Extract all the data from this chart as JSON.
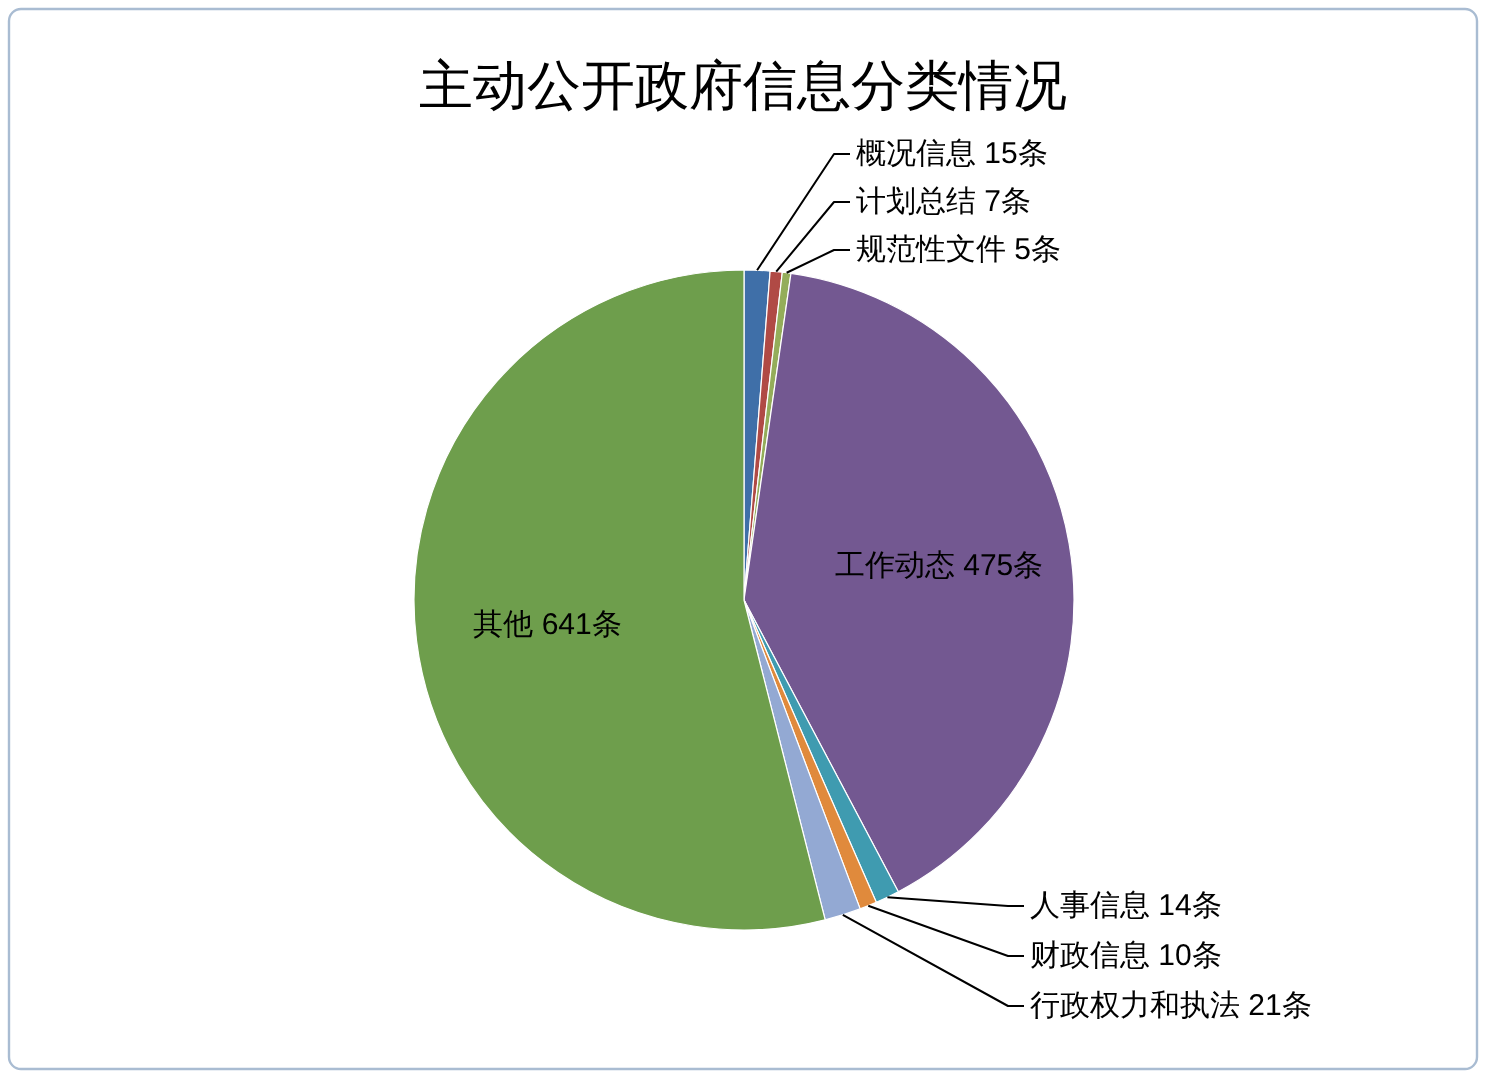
{
  "chart_data": {
    "type": "pie",
    "title": "主动公开政府信息分类情况",
    "categories": [
      "概况信息",
      "计划总结",
      "规范性文件",
      "工作动态",
      "人事信息",
      "财政信息",
      "行政权力和执法",
      "其他"
    ],
    "values": [
      15,
      7,
      5,
      475,
      14,
      10,
      21,
      641
    ],
    "colors": [
      "#3f6fa8",
      "#b04a45",
      "#94ad5a",
      "#735891",
      "#3f9bb0",
      "#e08a3c",
      "#93a9d3",
      "#6e9e4c"
    ],
    "value_labels": [
      "15条",
      "7条",
      "5条",
      "475条",
      "14条",
      "10条",
      "21条",
      "641条"
    ]
  }
}
